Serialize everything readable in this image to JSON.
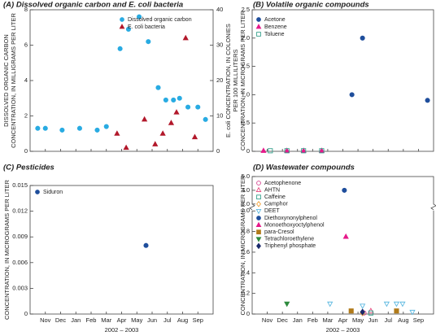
{
  "chart_data": [
    {
      "type": "scatter",
      "title": "(A) Dissolved organic carbon and E. coli bacteria",
      "ylabel": [
        "DISSOLVED ORGANIC CARBON",
        "CONCENTRATION, IN MILLIGRAMS PER LITER"
      ],
      "y2label": [
        "E. coli CONCENTRATION, IN COLONIES",
        "PER 100 MILLILITERS"
      ],
      "xlim": [
        -0.5,
        11.5
      ],
      "xticks": [
        0.5,
        1.5,
        2.5,
        3.5,
        4.5,
        5.5,
        6.5,
        7.5,
        8.5,
        9.5,
        10.5
      ],
      "ylim": [
        0,
        8
      ],
      "yticks": [
        0,
        2,
        4,
        6,
        8
      ],
      "y2lim": [
        0,
        40
      ],
      "y2ticks": [
        0,
        10,
        20,
        30,
        40
      ],
      "legend": "upper right",
      "series": [
        {
          "name": "Dissolved organic carbon",
          "color": "#29abe2",
          "marker": "circle",
          "filled": true,
          "x": [
            0,
            0.5,
            1.6,
            2.75,
            3.9,
            4.5,
            5.4,
            5.95,
            6.65,
            7.25,
            7.9,
            8.4,
            8.9,
            9.3,
            9.85,
            10.5,
            11.0
          ],
          "values": [
            1.3,
            1.3,
            1.2,
            1.3,
            1.2,
            1.4,
            5.8,
            6.9,
            7.6,
            6.2,
            3.6,
            2.9,
            2.9,
            3.0,
            2.5,
            2.5,
            1.8
          ]
        },
        {
          "name": "E. coli bacteria",
          "color": "#b2182b",
          "marker": "triangle",
          "filled": true,
          "axis": "y2",
          "x": [
            5.2,
            5.8,
            7.0,
            7.7,
            8.2,
            8.75,
            9.1,
            9.7,
            10.3
          ],
          "values": [
            5,
            1,
            9,
            2,
            5,
            8,
            11,
            32,
            4
          ]
        }
      ]
    },
    {
      "type": "scatter",
      "title": "(B) Volatile organic compounds",
      "ylabel": [
        "CONCENTRATION, IN MICROGRAMS PER LITER"
      ],
      "xlim": [
        -0.5,
        11.5
      ],
      "xticks": [
        0.5,
        1.5,
        2.5,
        3.5,
        4.5,
        5.5,
        6.5,
        7.5,
        8.5,
        9.5,
        10.5
      ],
      "ylim": [
        0,
        2.5
      ],
      "yticks": [
        0,
        0.5,
        {
          "value": 1,
          "label": "1.0"
        },
        1.5,
        {
          "value": 2,
          "label": "2.0"
        },
        2.5
      ],
      "legend": "upper left",
      "series": [
        {
          "name": "Acetone",
          "color": "#1f4e9c",
          "marker": "circle",
          "filled": true,
          "x": [
            6.1,
            6.8,
            11.1
          ],
          "values": [
            1.0,
            2.0,
            0.9
          ]
        },
        {
          "name": "Benzene",
          "color": "#e6198a",
          "marker": "triangle",
          "filled": true,
          "x": [
            0.25,
            1.8,
            2.9,
            4.1
          ],
          "values": [
            0.01,
            0.01,
            0.01,
            0.01
          ]
        },
        {
          "name": "Toluene",
          "color": "#35a08c",
          "marker": "square",
          "filled": false,
          "x": [
            0.7,
            1.8,
            2.9,
            4.1
          ],
          "values": [
            0.01,
            0.01,
            0.01,
            0.01
          ]
        }
      ]
    },
    {
      "type": "scatter",
      "title": "(C) Pesticides",
      "ylabel": [
        "CONCENTRATION, IN MICROGRAMS PER LITER"
      ],
      "xlabel": "2002 – 2003",
      "xlim": [
        -0.5,
        11.5
      ],
      "xticks": [
        {
          "value": 0.5,
          "label": "Nov"
        },
        {
          "value": 1.5,
          "label": "Dec"
        },
        {
          "value": 2.5,
          "label": "Jan"
        },
        {
          "value": 3.5,
          "label": "Feb"
        },
        {
          "value": 4.5,
          "label": "Mar"
        },
        {
          "value": 5.5,
          "label": "Apr"
        },
        {
          "value": 6.5,
          "label": "May"
        },
        {
          "value": 7.5,
          "label": "Jun"
        },
        {
          "value": 8.5,
          "label": "Jul"
        },
        {
          "value": 9.5,
          "label": "Aug"
        },
        {
          "value": 10.5,
          "label": "Sep"
        }
      ],
      "ylim": [
        0,
        0.015
      ],
      "yticks": [
        0,
        0.003,
        0.006,
        0.009,
        0.012,
        0.015
      ],
      "legend": "upper left",
      "series": [
        {
          "name": "Siduron",
          "color": "#1f4e9c",
          "marker": "circle",
          "filled": true,
          "x": [
            7.1
          ],
          "values": [
            0.008
          ]
        }
      ]
    },
    {
      "type": "scatter",
      "title": "(D) Wastewater compounds",
      "ylabel": [
        "CONCENTRATION, IN MICROGRAMS PER LITER"
      ],
      "xlabel": "2002 – 2003",
      "xlim": [
        -0.5,
        11.5
      ],
      "xticks": [
        {
          "value": 0.5,
          "label": "Nov"
        },
        {
          "value": 1.5,
          "label": "Dec"
        },
        {
          "value": 2.5,
          "label": "Jan"
        },
        {
          "value": 3.5,
          "label": "Feb"
        },
        {
          "value": 4.5,
          "label": "Mar"
        },
        {
          "value": 5.5,
          "label": "Apr"
        },
        {
          "value": 6.5,
          "label": "May"
        },
        {
          "value": 7.5,
          "label": "Jun"
        },
        {
          "value": 8.5,
          "label": "Jul"
        },
        {
          "value": 9.5,
          "label": "Aug"
        },
        {
          "value": 10.5,
          "label": "Sep"
        }
      ],
      "ylim": [
        0,
        5
      ],
      "y_break": [
        1,
        3
      ],
      "yticks": [
        0,
        0.2,
        0.4,
        0.6,
        0.8,
        {
          "value": 1,
          "label": "1.0"
        },
        {
          "value": 3,
          "label": "3.0"
        },
        {
          "value": 4,
          "label": "4.0"
        },
        {
          "value": 5,
          "label": "5.0"
        }
      ],
      "legend": "upper left",
      "series": [
        {
          "name": "Acetophenone",
          "color": "#d6428f",
          "marker": "circle",
          "filled": false,
          "x": [
            6.9
          ],
          "values": [
            0.01
          ]
        },
        {
          "name": "AHTN",
          "color": "#e8467c",
          "marker": "triangle",
          "filled": false,
          "x": [
            7.35
          ],
          "values": [
            0.03
          ]
        },
        {
          "name": "Caffeine",
          "color": "#35a08c",
          "marker": "square",
          "filled": false,
          "x": [
            7.35
          ],
          "values": [
            0.01
          ]
        },
        {
          "name": "Camphor",
          "color": "#f2a33a",
          "marker": "diamond",
          "filled": false,
          "x": [
            6.8
          ],
          "values": [
            0.01
          ]
        },
        {
          "name": "DEET",
          "color": "#5cb8e0",
          "marker": "down",
          "filled": false,
          "x": [
            4.65,
            6.8,
            8.4,
            9.05,
            9.45,
            10.1
          ],
          "values": [
            0.1,
            0.08,
            0.1,
            0.1,
            0.1,
            0.02
          ]
        },
        {
          "name": "Diethoxynonylphenol",
          "color": "#1f4e9c",
          "marker": "circle",
          "filled": true,
          "x": [
            5.6
          ],
          "values": [
            4.0
          ]
        },
        {
          "name": "Monoethoxyoctylphenol",
          "color": "#e6198a",
          "marker": "triangle",
          "filled": true,
          "x": [
            5.7
          ],
          "values": [
            0.75
          ]
        },
        {
          "name": "para-Cresol",
          "color": "#b07a1a",
          "marker": "square",
          "filled": true,
          "x": [
            6.05,
            9.05
          ],
          "values": [
            0.03,
            0.03
          ]
        },
        {
          "name": "Tetrachloroethylene",
          "color": "#2e8b3e",
          "marker": "down",
          "filled": true,
          "x": [
            1.8
          ],
          "values": [
            0.1
          ]
        },
        {
          "name": "Triphenyl phosphate",
          "color": "#1a2a6c",
          "marker": "diamond",
          "filled": true,
          "x": [
            6.8
          ],
          "values": [
            0.02
          ]
        }
      ]
    }
  ]
}
